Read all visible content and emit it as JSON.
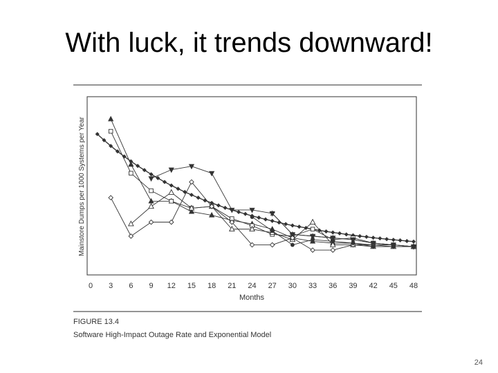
{
  "slide": {
    "title": "With luck, it trends downward!",
    "page_number": "24"
  },
  "figure": {
    "caption_number": "FIGURE 13.4",
    "caption_text": "Software High-Impact Outage Rate and Exponential Model"
  },
  "chart_data": {
    "type": "line",
    "xlabel": "Months",
    "ylabel": "Mainstore Dumps per 1000 Systems per Year",
    "x_ticks": [
      0,
      3,
      6,
      9,
      12,
      15,
      18,
      21,
      24,
      27,
      30,
      33,
      36,
      39,
      42,
      45,
      48
    ],
    "xlim": [
      0,
      48
    ],
    "ylim": [
      0,
      100
    ],
    "y_tick_labels_shown": false,
    "legend": "none",
    "series": [
      {
        "marker": "filled-diamond",
        "role": "exponential model",
        "x": [
          1,
          2,
          3,
          4,
          5,
          6,
          7,
          8,
          9,
          10,
          11,
          12,
          13,
          14,
          15,
          16,
          17,
          18,
          19,
          20,
          21,
          22,
          23,
          24,
          25,
          26,
          27,
          28,
          29,
          30,
          31,
          32,
          33,
          34,
          35,
          36,
          37,
          38,
          39,
          40,
          41,
          42,
          43,
          44,
          45,
          46,
          47,
          48
        ],
        "y": [
          79.4,
          75.9,
          72.6,
          69.5,
          66.6,
          63.8,
          61.2,
          58.8,
          56.4,
          54.2,
          52.0,
          50.0,
          48.1,
          46.3,
          44.6,
          43.0,
          41.4,
          40.0,
          38.6,
          37.2,
          36.0,
          34.8,
          33.7,
          32.6,
          31.6,
          30.6,
          29.7,
          28.8,
          27.9,
          27.1,
          26.4,
          25.7,
          25.0,
          24.3,
          23.7,
          23.1,
          22.6,
          22.0,
          21.5,
          21.0,
          20.6,
          20.1,
          19.7,
          19.3,
          18.9,
          18.6,
          18.2,
          17.9
        ]
      },
      {
        "marker": "filled-triangle-up",
        "x": [
          3,
          6,
          9,
          12,
          15,
          18,
          21,
          24,
          27,
          30,
          33,
          36,
          39,
          42,
          45,
          48
        ],
        "y": [
          88,
          62,
          41,
          41,
          35,
          33,
          30,
          28,
          25,
          20,
          18,
          17,
          17,
          16,
          15,
          15
        ]
      },
      {
        "marker": "open-square",
        "x": [
          3,
          6,
          9,
          12,
          15,
          18,
          21,
          24,
          27,
          30,
          33,
          36,
          39,
          42,
          45,
          48
        ],
        "y": [
          81,
          57,
          47,
          41,
          37,
          38,
          31,
          27,
          22,
          21,
          25,
          19,
          20,
          17,
          16,
          15
        ]
      },
      {
        "marker": "filled-triangle-down",
        "x": [
          9,
          12,
          15,
          18,
          21,
          24,
          27,
          30,
          33,
          36,
          39,
          42,
          45,
          48
        ],
        "y": [
          54,
          59,
          61,
          57,
          36,
          36,
          34,
          22,
          21,
          20,
          19,
          17,
          16,
          15
        ]
      },
      {
        "marker": "open-triangle-up",
        "x": [
          6,
          9,
          12,
          15,
          18,
          21,
          24,
          27,
          30,
          33,
          36,
          39,
          42,
          45,
          48
        ],
        "y": [
          28,
          38,
          46,
          37,
          38,
          25,
          25,
          23,
          19,
          29,
          16,
          16,
          15,
          15,
          15
        ]
      },
      {
        "marker": "open-diamond",
        "x": [
          3,
          6,
          9,
          12,
          15,
          18,
          21,
          24,
          27,
          30,
          33,
          36,
          39,
          42,
          45,
          48
        ],
        "y": [
          43,
          21,
          29,
          29,
          52,
          38,
          29,
          16,
          16,
          20,
          13,
          13,
          16,
          16,
          16,
          15
        ]
      },
      {
        "marker": "filled-circle",
        "x": [
          24,
          27,
          30,
          33,
          36,
          39,
          42,
          45,
          48
        ],
        "y": [
          32,
          24,
          16,
          19,
          18,
          17,
          15,
          15,
          15
        ]
      },
      {
        "marker": "filled-star",
        "x": [
          27,
          30,
          33,
          36,
          39,
          42,
          45,
          48
        ],
        "y": [
          34,
          22,
          21,
          20,
          19,
          17,
          16,
          15
        ]
      }
    ]
  },
  "colors": {
    "ink": "#333333",
    "rule": "#555555",
    "paper": "#ffffff"
  }
}
